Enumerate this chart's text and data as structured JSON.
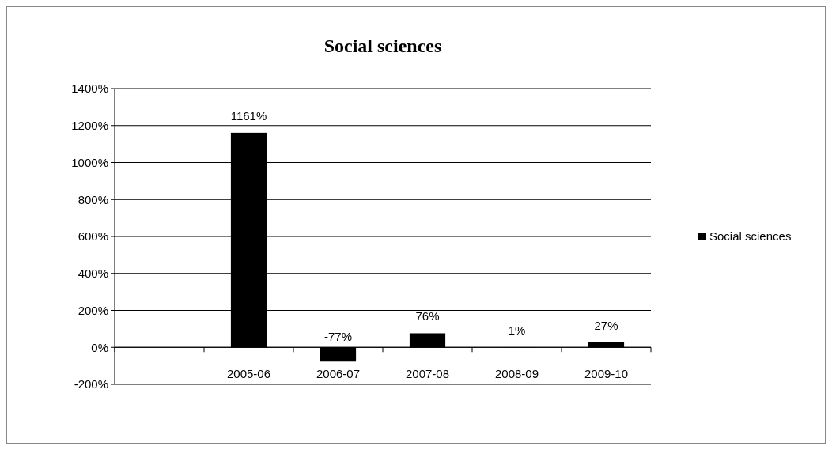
{
  "chart_data": {
    "type": "bar",
    "title": "Social sciences",
    "categories": [
      null,
      "2005-06",
      "2006-07",
      "2007-08",
      "2008-09",
      "2009-10"
    ],
    "series": [
      {
        "name": "Social sciences",
        "color": "#000000",
        "values": [
          null,
          1161,
          -77,
          76,
          1,
          27
        ]
      }
    ],
    "ylim": [
      -200,
      1400
    ],
    "yticks": [
      {
        "value": -200,
        "label": "-200%"
      },
      {
        "value": 0,
        "label": "0%"
      },
      {
        "value": 200,
        "label": "200%"
      },
      {
        "value": 400,
        "label": "400%"
      },
      {
        "value": 600,
        "label": "600%"
      },
      {
        "value": 800,
        "label": "800%"
      },
      {
        "value": 1000,
        "label": "1000%"
      },
      {
        "value": 1200,
        "label": "1200%"
      },
      {
        "value": 1400,
        "label": "1400%"
      }
    ],
    "value_labels": [
      null,
      "1161%",
      "-77%",
      "76%",
      "1%",
      "27%"
    ],
    "grid": "y",
    "legend": "right"
  }
}
